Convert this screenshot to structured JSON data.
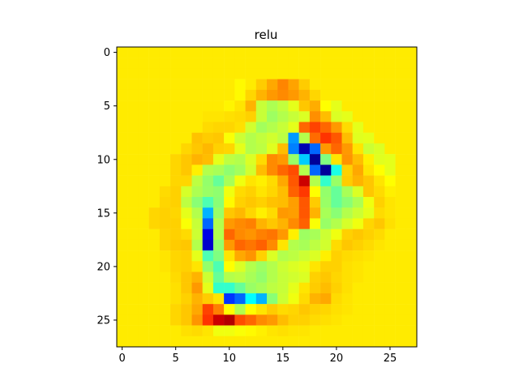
{
  "chart_data": {
    "type": "heatmap",
    "title": "relu",
    "xlabel": "",
    "ylabel": "",
    "colormap": "jet",
    "grid": false,
    "xlim": [
      -0.5,
      27.5
    ],
    "ylim": [
      27.5,
      -0.5
    ],
    "x_ticks": [
      0,
      5,
      10,
      15,
      20,
      25
    ],
    "y_ticks": [
      0,
      5,
      10,
      15,
      20,
      25
    ],
    "x_tick_labels": [
      "0",
      "5",
      "10",
      "15",
      "20",
      "25"
    ],
    "y_tick_labels": [
      "0",
      "5",
      "10",
      "15",
      "20",
      "25"
    ],
    "value_range": [
      -1,
      1
    ],
    "rows": 28,
    "cols": 28,
    "values": [
      [
        0.29,
        0.29,
        0.29,
        0.29,
        0.29,
        0.29,
        0.29,
        0.29,
        0.29,
        0.29,
        0.29,
        0.29,
        0.29,
        0.29,
        0.29,
        0.29,
        0.29,
        0.29,
        0.29,
        0.29,
        0.29,
        0.29,
        0.29,
        0.29,
        0.29,
        0.29,
        0.29,
        0.29
      ],
      [
        0.29,
        0.29,
        0.29,
        0.29,
        0.29,
        0.29,
        0.29,
        0.29,
        0.29,
        0.29,
        0.29,
        0.29,
        0.29,
        0.29,
        0.29,
        0.29,
        0.29,
        0.29,
        0.29,
        0.29,
        0.29,
        0.29,
        0.29,
        0.29,
        0.29,
        0.29,
        0.29,
        0.29
      ],
      [
        0.29,
        0.29,
        0.29,
        0.29,
        0.29,
        0.29,
        0.29,
        0.29,
        0.29,
        0.29,
        0.29,
        0.29,
        0.29,
        0.29,
        0.29,
        0.29,
        0.29,
        0.29,
        0.29,
        0.29,
        0.29,
        0.29,
        0.29,
        0.29,
        0.29,
        0.29,
        0.29,
        0.29
      ],
      [
        0.29,
        0.29,
        0.29,
        0.29,
        0.29,
        0.29,
        0.29,
        0.29,
        0.29,
        0.29,
        0.29,
        0.26,
        0.29,
        0.35,
        0.42,
        0.49,
        0.43,
        0.35,
        0.29,
        0.29,
        0.29,
        0.29,
        0.29,
        0.29,
        0.29,
        0.29,
        0.29,
        0.29
      ],
      [
        0.29,
        0.29,
        0.29,
        0.29,
        0.29,
        0.29,
        0.29,
        0.29,
        0.29,
        0.29,
        0.29,
        0.26,
        0.33,
        0.4,
        0.45,
        0.48,
        0.45,
        0.4,
        0.33,
        0.29,
        0.29,
        0.29,
        0.29,
        0.29,
        0.29,
        0.29,
        0.29,
        0.29
      ],
      [
        0.29,
        0.29,
        0.29,
        0.29,
        0.29,
        0.29,
        0.29,
        0.29,
        0.29,
        0.29,
        0.27,
        0.3,
        0.4,
        0.14,
        0.09,
        0.13,
        0.2,
        0.36,
        0.41,
        0.25,
        0.2,
        0.29,
        0.29,
        0.29,
        0.29,
        0.29,
        0.29,
        0.29
      ],
      [
        0.29,
        0.29,
        0.29,
        0.29,
        0.29,
        0.29,
        0.29,
        0.29,
        0.3,
        0.3,
        0.31,
        0.32,
        0.34,
        0.14,
        0.06,
        0.1,
        0.14,
        0.18,
        0.47,
        0.38,
        0.18,
        0.2,
        0.29,
        0.29,
        0.29,
        0.29,
        0.29,
        0.29
      ],
      [
        0.29,
        0.29,
        0.29,
        0.29,
        0.29,
        0.29,
        0.29,
        0.29,
        0.32,
        0.33,
        0.33,
        0.31,
        0.16,
        0.07,
        0.1,
        0.14,
        0.2,
        0.55,
        0.62,
        0.55,
        0.45,
        0.32,
        0.2,
        0.29,
        0.29,
        0.29,
        0.29,
        0.29
      ],
      [
        0.29,
        0.29,
        0.29,
        0.29,
        0.29,
        0.29,
        0.29,
        0.37,
        0.35,
        0.36,
        0.24,
        0.15,
        0.1,
        0.13,
        0.16,
        0.12,
        -0.45,
        0.1,
        0.54,
        0.65,
        0.58,
        0.38,
        0.19,
        0.2,
        0.29,
        0.29,
        0.29,
        0.29
      ],
      [
        0.29,
        0.29,
        0.29,
        0.29,
        0.29,
        0.29,
        0.33,
        0.36,
        0.39,
        0.34,
        0.33,
        0.2,
        0.1,
        0.12,
        0.19,
        0.38,
        -0.5,
        -0.9,
        -0.55,
        0.45,
        0.55,
        0.45,
        0.3,
        0.15,
        0.18,
        0.29,
        0.29,
        0.29
      ],
      [
        0.29,
        0.29,
        0.29,
        0.29,
        0.29,
        0.33,
        0.36,
        0.4,
        0.38,
        0.2,
        0.12,
        0.1,
        0.18,
        0.32,
        0.48,
        0.45,
        0.05,
        -0.35,
        -0.95,
        0.0,
        0.3,
        0.46,
        0.38,
        0.28,
        0.19,
        0.2,
        0.29,
        0.29
      ],
      [
        0.29,
        0.29,
        0.29,
        0.29,
        0.29,
        0.33,
        0.36,
        0.28,
        0.1,
        0.08,
        0.03,
        0.07,
        0.16,
        0.38,
        0.48,
        0.55,
        0.6,
        0.1,
        -0.55,
        -0.95,
        -0.2,
        0.34,
        0.42,
        0.3,
        0.25,
        0.2,
        0.29,
        0.29
      ],
      [
        0.29,
        0.29,
        0.29,
        0.29,
        0.29,
        0.33,
        0.33,
        0.12,
        0.04,
        -0.05,
        0.08,
        0.22,
        0.3,
        0.28,
        0.32,
        0.42,
        0.58,
        0.85,
        0.1,
        -0.15,
        0.05,
        0.35,
        0.4,
        0.36,
        0.3,
        0.25,
        0.29,
        0.29
      ],
      [
        0.29,
        0.29,
        0.29,
        0.29,
        0.32,
        0.34,
        0.17,
        0.09,
        0.05,
        0.03,
        0.22,
        0.32,
        0.34,
        0.3,
        0.33,
        0.38,
        0.56,
        0.64,
        0.25,
        0.04,
        -0.05,
        0.08,
        0.18,
        0.36,
        0.32,
        0.28,
        0.29,
        0.29
      ],
      [
        0.29,
        0.29,
        0.29,
        0.29,
        0.33,
        0.34,
        0.12,
        0.02,
        -0.1,
        0.02,
        0.26,
        0.34,
        0.36,
        0.34,
        0.37,
        0.38,
        0.44,
        0.58,
        0.35,
        0.05,
        -0.05,
        0.02,
        0.09,
        0.22,
        0.34,
        0.3,
        0.29,
        0.29
      ],
      [
        0.29,
        0.29,
        0.29,
        0.33,
        0.34,
        0.33,
        0.2,
        0.1,
        -0.4,
        0.05,
        0.36,
        0.39,
        0.33,
        0.28,
        0.32,
        0.45,
        0.44,
        0.58,
        0.4,
        0.08,
        0.02,
        0.1,
        0.15,
        0.2,
        0.32,
        0.3,
        0.29,
        0.29
      ],
      [
        0.29,
        0.29,
        0.29,
        0.33,
        0.34,
        0.34,
        0.24,
        0.14,
        -0.55,
        0.1,
        0.45,
        0.48,
        0.5,
        0.4,
        0.36,
        0.4,
        0.48,
        0.56,
        0.24,
        0.05,
        0.1,
        0.17,
        0.22,
        0.33,
        0.36,
        0.31,
        0.29,
        0.29
      ],
      [
        0.29,
        0.29,
        0.29,
        0.29,
        0.33,
        0.34,
        0.32,
        0.15,
        -0.8,
        0.1,
        0.55,
        0.48,
        0.46,
        0.5,
        0.52,
        0.45,
        0.28,
        0.06,
        0.08,
        0.15,
        0.22,
        0.34,
        0.36,
        0.34,
        0.32,
        0.29,
        0.29,
        0.29
      ],
      [
        0.29,
        0.29,
        0.29,
        0.29,
        0.33,
        0.35,
        0.36,
        0.1,
        -0.85,
        0.04,
        0.45,
        0.55,
        0.52,
        0.56,
        0.48,
        0.3,
        0.1,
        0.08,
        0.12,
        0.16,
        0.32,
        0.36,
        0.34,
        0.32,
        0.3,
        0.29,
        0.29,
        0.29
      ],
      [
        0.29,
        0.29,
        0.29,
        0.29,
        0.3,
        0.33,
        0.34,
        0.2,
        -0.1,
        0.0,
        0.3,
        0.42,
        0.46,
        0.34,
        0.18,
        0.1,
        0.12,
        0.15,
        0.18,
        0.28,
        0.34,
        0.32,
        0.31,
        0.3,
        0.29,
        0.29,
        0.29,
        0.29
      ],
      [
        0.29,
        0.29,
        0.29,
        0.29,
        0.3,
        0.33,
        0.34,
        0.3,
        0.04,
        -0.1,
        0.25,
        0.18,
        0.1,
        0.06,
        0.1,
        0.15,
        0.18,
        0.2,
        0.3,
        0.34,
        0.34,
        0.31,
        0.3,
        0.29,
        0.29,
        0.29,
        0.29,
        0.29
      ],
      [
        0.29,
        0.29,
        0.29,
        0.29,
        0.29,
        0.32,
        0.36,
        0.4,
        0.15,
        -0.05,
        0.1,
        0.12,
        0.08,
        0.04,
        0.1,
        0.14,
        0.16,
        0.18,
        0.34,
        0.36,
        0.33,
        0.31,
        0.3,
        0.29,
        0.29,
        0.29,
        0.29,
        0.29
      ],
      [
        0.29,
        0.29,
        0.29,
        0.29,
        0.29,
        0.31,
        0.36,
        0.45,
        0.2,
        -0.15,
        -0.15,
        -0.05,
        0.05,
        0.08,
        0.12,
        0.14,
        0.2,
        0.3,
        0.35,
        0.38,
        0.34,
        0.31,
        0.29,
        0.29,
        0.29,
        0.29,
        0.29,
        0.29
      ],
      [
        0.29,
        0.29,
        0.29,
        0.29,
        0.29,
        0.31,
        0.34,
        0.4,
        0.35,
        0.3,
        -0.65,
        -0.55,
        -0.25,
        -0.4,
        0.02,
        0.15,
        0.22,
        0.32,
        0.4,
        0.42,
        0.32,
        0.3,
        0.29,
        0.29,
        0.29,
        0.29,
        0.29,
        0.29
      ],
      [
        0.29,
        0.29,
        0.29,
        0.29,
        0.29,
        0.33,
        0.36,
        0.42,
        0.62,
        0.5,
        0.25,
        0.1,
        0.25,
        0.3,
        0.35,
        0.32,
        0.33,
        0.36,
        0.34,
        0.33,
        0.31,
        0.3,
        0.29,
        0.29,
        0.29,
        0.29,
        0.29,
        0.29
      ],
      [
        0.29,
        0.29,
        0.29,
        0.29,
        0.29,
        0.33,
        0.36,
        0.46,
        0.65,
        0.85,
        0.9,
        0.6,
        0.55,
        0.48,
        0.45,
        0.38,
        0.34,
        0.34,
        0.32,
        0.31,
        0.3,
        0.29,
        0.29,
        0.29,
        0.29,
        0.29,
        0.29,
        0.29
      ],
      [
        0.29,
        0.29,
        0.29,
        0.29,
        0.29,
        0.29,
        0.31,
        0.32,
        0.3,
        0.22,
        0.22,
        0.24,
        0.26,
        0.28,
        0.3,
        0.31,
        0.3,
        0.3,
        0.29,
        0.29,
        0.29,
        0.29,
        0.29,
        0.29,
        0.29,
        0.29,
        0.29,
        0.29
      ],
      [
        0.29,
        0.29,
        0.29,
        0.29,
        0.29,
        0.29,
        0.29,
        0.29,
        0.29,
        0.29,
        0.29,
        0.29,
        0.29,
        0.29,
        0.29,
        0.29,
        0.29,
        0.29,
        0.29,
        0.29,
        0.29,
        0.29,
        0.29,
        0.29,
        0.29,
        0.29,
        0.29,
        0.29
      ]
    ]
  }
}
